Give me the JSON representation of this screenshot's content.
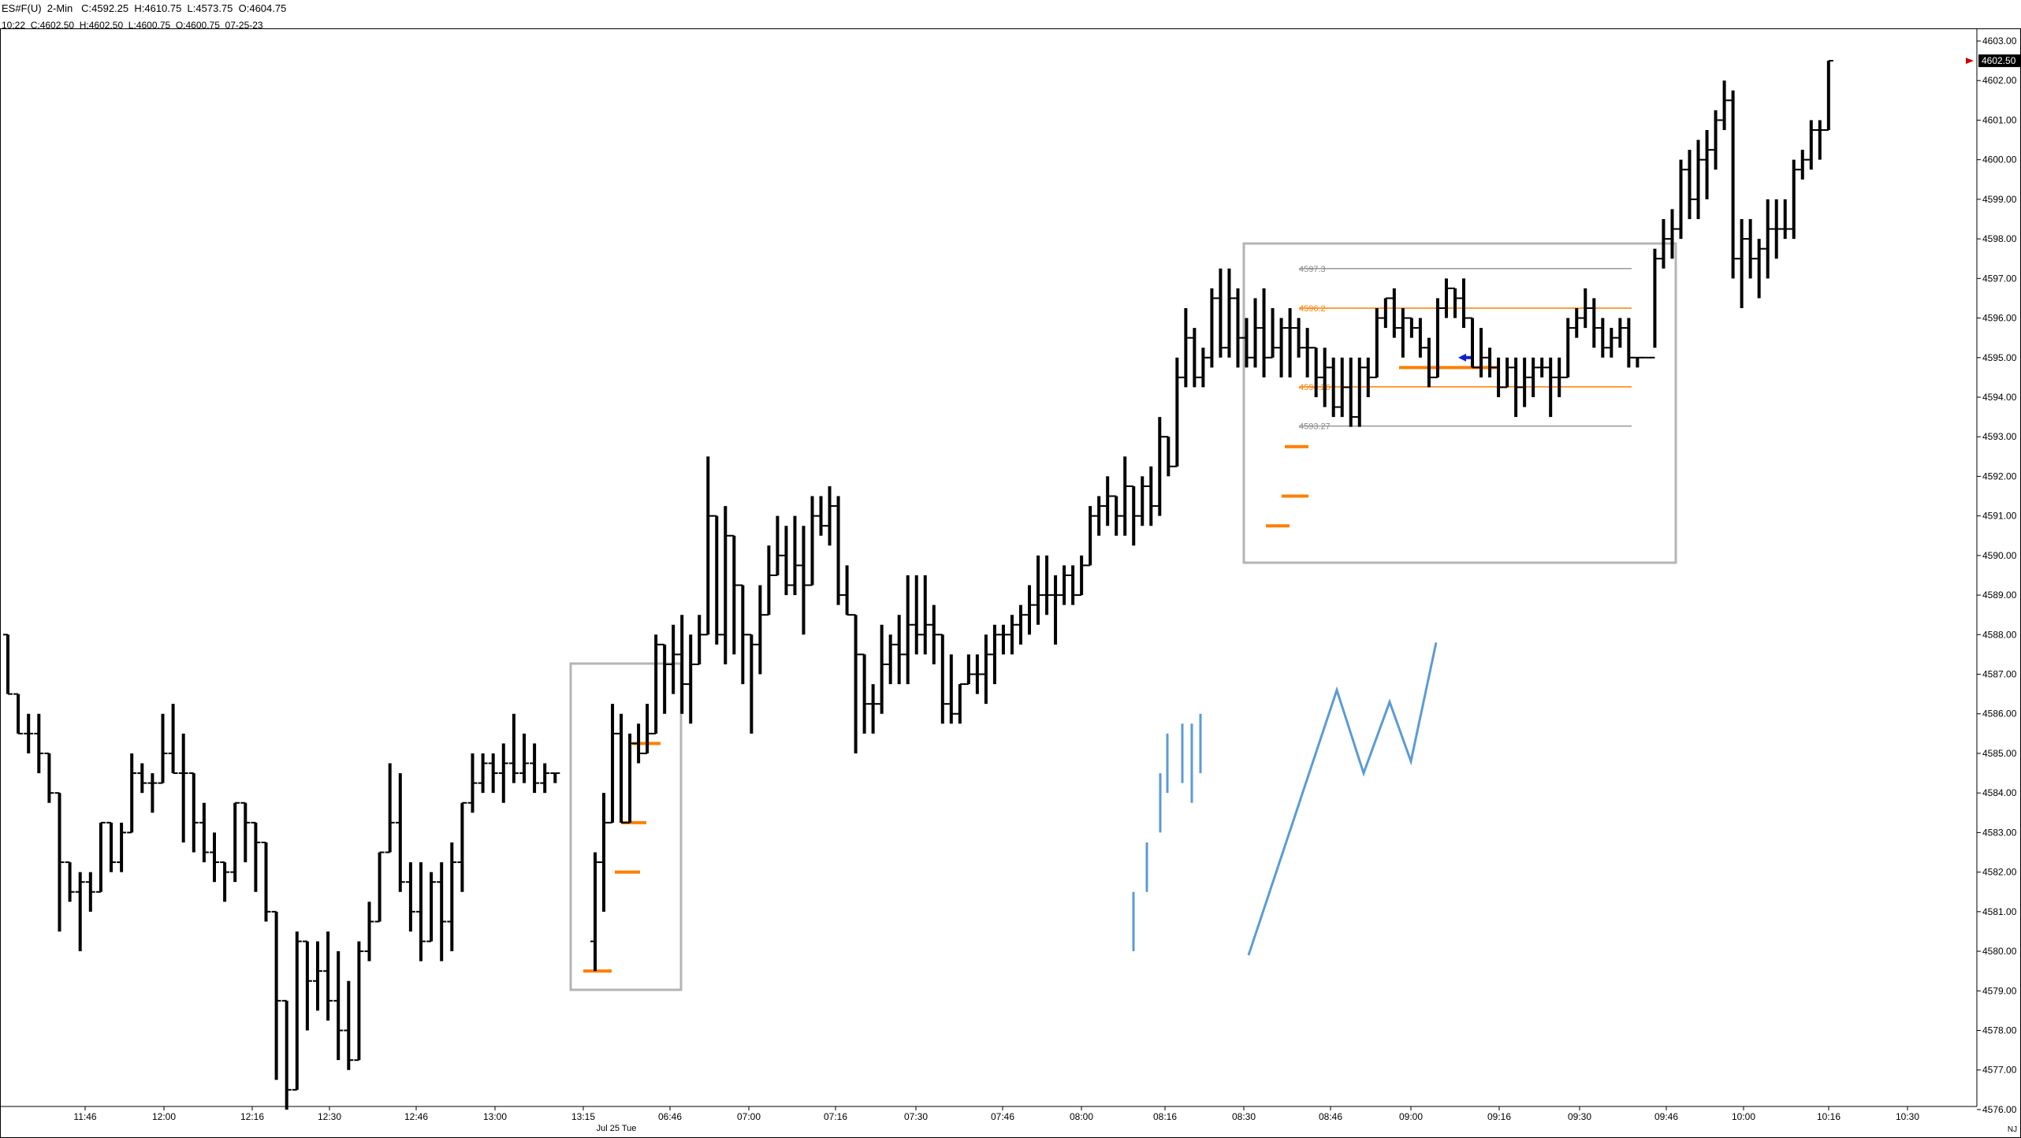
{
  "header": {
    "symbol_line": "ES#F(U)  2-Min   C:4592.25  H:4610.75  L:4573.75  O:4604.75",
    "bar_line": "10:22  C:4602.50  H:4602.50  L:4600.75  O:4600.75  07-25-23"
  },
  "colors": {
    "bar": "#000000",
    "level_orange": "#ff7f00",
    "box_gray": "#b4b4b4",
    "projection_blue": "#5b9bd5",
    "marker_blue": "#1020d0",
    "price_arrow": "#cc0000",
    "axis": "#000000"
  },
  "price_axis": {
    "labels": [
      "4603.00",
      "4602.00",
      "4601.00",
      "4600.00",
      "4599.00",
      "4598.00",
      "4597.00",
      "4596.00",
      "4595.00",
      "4594.00",
      "4593.00",
      "4592.00",
      "4591.00",
      "4590.00",
      "4589.00",
      "4588.00",
      "4587.00",
      "4586.00",
      "4585.00",
      "4584.00",
      "4583.00",
      "4582.00",
      "4581.00",
      "4580.00",
      "4579.00",
      "4578.00",
      "4577.00",
      "4576.00"
    ],
    "last_price": "4602.50"
  },
  "time_axis": {
    "labels": [
      "11:46",
      "12:00",
      "12:16",
      "12:30",
      "12:46",
      "13:00",
      "13:15",
      "06:46",
      "07:00",
      "07:16",
      "07:30",
      "07:46",
      "08:00",
      "08:16",
      "08:30",
      "08:46",
      "09:00",
      "09:16",
      "09:30",
      "09:46",
      "10:00",
      "10:16",
      "10:30"
    ],
    "date_label": "Jul 25 Tue",
    "corner_label": "NJ"
  },
  "range_box_labels": [
    "4597.3",
    "4596.2",
    "4594.26",
    "4593.27"
  ],
  "chart_data": {
    "type": "bar",
    "description_series": "OHLC 2-minute price bars",
    "ylim": [
      4576.0,
      4603.0
    ],
    "bars": [
      [
        4588.0,
        4588.0,
        4586.5,
        4586.5
      ],
      [
        4586.5,
        4586.5,
        4585.5,
        4585.5
      ],
      [
        4585.5,
        4586.0,
        4585.0,
        4585.5
      ],
      [
        4585.5,
        4586.0,
        4584.5,
        4585.0
      ],
      [
        4585.0,
        4585.0,
        4583.75,
        4584.0
      ],
      [
        4584.0,
        4584.0,
        4580.5,
        4582.25
      ],
      [
        4582.25,
        4582.25,
        4581.25,
        4581.5
      ],
      [
        4581.5,
        4582.0,
        4580.0,
        4581.75
      ],
      [
        4581.75,
        4582.0,
        4581.0,
        4581.5
      ],
      [
        4581.5,
        4583.25,
        4581.5,
        4583.25
      ],
      [
        4583.25,
        4583.25,
        4582.0,
        4582.25
      ],
      [
        4582.25,
        4583.25,
        4582.0,
        4583.0
      ],
      [
        4583.0,
        4585.0,
        4583.0,
        4584.5
      ],
      [
        4584.5,
        4584.75,
        4584.0,
        4584.25
      ],
      [
        4584.25,
        4584.5,
        4583.5,
        4584.25
      ],
      [
        4584.25,
        4586.0,
        4584.25,
        4585.0
      ],
      [
        4585.0,
        4586.25,
        4584.5,
        4584.5
      ],
      [
        4584.5,
        4585.5,
        4582.75,
        4584.5
      ],
      [
        4584.5,
        4584.5,
        4582.5,
        4583.25
      ],
      [
        4583.25,
        4583.75,
        4582.25,
        4582.5
      ],
      [
        4582.5,
        4583.0,
        4581.75,
        4582.25
      ],
      [
        4582.25,
        4582.25,
        4581.25,
        4582.0
      ],
      [
        4582.0,
        4583.75,
        4581.75,
        4583.75
      ],
      [
        4583.75,
        4583.75,
        4582.25,
        4583.25
      ],
      [
        4583.25,
        4583.25,
        4581.5,
        4582.75
      ],
      [
        4582.75,
        4582.75,
        4580.75,
        4581.0
      ],
      [
        4581.0,
        4581.0,
        4576.75,
        4578.75
      ],
      [
        4578.75,
        4578.75,
        4576.0,
        4576.5
      ],
      [
        4576.5,
        4580.5,
        4576.5,
        4580.25
      ],
      [
        4580.25,
        4580.25,
        4578.0,
        4579.25
      ],
      [
        4579.25,
        4580.25,
        4578.5,
        4579.5
      ],
      [
        4579.5,
        4580.5,
        4578.25,
        4578.75
      ],
      [
        4578.75,
        4580.0,
        4577.25,
        4578.0
      ],
      [
        4578.0,
        4579.25,
        4577.0,
        4577.25
      ],
      [
        4577.25,
        4580.25,
        4577.25,
        4580.0
      ],
      [
        4580.0,
        4581.25,
        4579.75,
        4580.75
      ],
      [
        4580.75,
        4582.5,
        4580.75,
        4582.5
      ],
      [
        4582.5,
        4584.75,
        4582.5,
        4583.25
      ],
      [
        4583.25,
        4584.5,
        4581.5,
        4581.75
      ],
      [
        4581.75,
        4582.25,
        4580.5,
        4581.0
      ],
      [
        4581.0,
        4582.25,
        4579.75,
        4580.25
      ],
      [
        4580.25,
        4582.0,
        4580.25,
        4581.75
      ],
      [
        4581.75,
        4582.25,
        4579.75,
        4580.75
      ],
      [
        4580.75,
        4582.75,
        4580.0,
        4582.25
      ],
      [
        4582.25,
        4583.75,
        4581.5,
        4583.75
      ],
      [
        4583.75,
        4585.0,
        4583.5,
        4584.25
      ],
      [
        4584.25,
        4585.0,
        4584.0,
        4584.75
      ],
      [
        4584.75,
        4585.0,
        4584.0,
        4584.5
      ],
      [
        4584.5,
        4585.25,
        4583.75,
        4584.75
      ],
      [
        4584.75,
        4586.0,
        4584.25,
        4584.5
      ],
      [
        4584.5,
        4585.5,
        4584.25,
        4584.75
      ],
      [
        4584.75,
        4585.25,
        4584.0,
        4584.25
      ],
      [
        4584.25,
        4584.75,
        4584.0,
        4584.5
      ],
      [
        4584.5,
        4584.5,
        4584.25,
        4584.5
      ],
      [
        4580.25,
        4582.5,
        4579.5,
        4582.25
      ],
      [
        4582.25,
        4584.0,
        4581.0,
        4583.25
      ],
      [
        4583.25,
        4586.25,
        4583.25,
        4585.5
      ],
      [
        4585.5,
        4586.0,
        4583.25,
        4583.25
      ],
      [
        4583.25,
        4585.5,
        4583.25,
        4585.25
      ],
      [
        4585.25,
        4585.75,
        4584.75,
        4585.0
      ],
      [
        4585.0,
        4586.25,
        4585.0,
        4585.5
      ],
      [
        4585.5,
        4588.0,
        4585.5,
        4587.75
      ],
      [
        4587.75,
        4587.75,
        4586.0,
        4587.25
      ],
      [
        4587.25,
        4588.25,
        4586.5,
        4587.5
      ],
      [
        4587.5,
        4588.5,
        4586.0,
        4586.75
      ],
      [
        4586.75,
        4588.0,
        4585.75,
        4587.25
      ],
      [
        4587.25,
        4588.5,
        4587.25,
        4588.0
      ],
      [
        4588.0,
        4592.5,
        4588.0,
        4591.0
      ],
      [
        4591.0,
        4591.0,
        4587.75,
        4588.0
      ],
      [
        4588.0,
        4591.25,
        4587.25,
        4590.5
      ],
      [
        4590.5,
        4590.5,
        4587.5,
        4589.25
      ],
      [
        4589.25,
        4589.25,
        4586.75,
        4588.0
      ],
      [
        4588.0,
        4588.0,
        4585.5,
        4587.75
      ],
      [
        4587.75,
        4589.25,
        4587.0,
        4588.5
      ],
      [
        4588.5,
        4590.25,
        4588.5,
        4589.5
      ],
      [
        4589.5,
        4591.0,
        4589.5,
        4590.0
      ],
      [
        4590.0,
        4590.75,
        4589.0,
        4589.25
      ],
      [
        4589.25,
        4591.0,
        4589.0,
        4589.75
      ],
      [
        4589.75,
        4590.75,
        4588.0,
        4589.25
      ],
      [
        4589.25,
        4591.5,
        4589.25,
        4591.0
      ],
      [
        4591.0,
        4591.5,
        4590.5,
        4590.75
      ],
      [
        4590.75,
        4591.75,
        4590.25,
        4591.25
      ],
      [
        4591.25,
        4591.5,
        4588.75,
        4589.0
      ],
      [
        4589.0,
        4589.75,
        4588.5,
        4588.5
      ],
      [
        4588.5,
        4588.5,
        4585.0,
        4587.5
      ],
      [
        4587.5,
        4587.5,
        4585.5,
        4586.25
      ],
      [
        4586.25,
        4586.75,
        4585.5,
        4586.25
      ],
      [
        4586.25,
        4588.25,
        4586.0,
        4587.25
      ],
      [
        4587.25,
        4588.0,
        4586.75,
        4587.75
      ],
      [
        4587.75,
        4588.5,
        4586.75,
        4587.5
      ],
      [
        4587.5,
        4589.5,
        4586.75,
        4588.25
      ],
      [
        4588.25,
        4589.5,
        4587.5,
        4588.0
      ],
      [
        4588.0,
        4589.5,
        4587.5,
        4588.25
      ],
      [
        4588.25,
        4588.75,
        4587.25,
        4588.0
      ],
      [
        4588.0,
        4588.0,
        4585.75,
        4586.25
      ],
      [
        4586.25,
        4587.5,
        4585.75,
        4586.0
      ],
      [
        4586.0,
        4586.75,
        4585.75,
        4586.75
      ],
      [
        4586.75,
        4587.5,
        4586.75,
        4587.0
      ],
      [
        4587.0,
        4587.5,
        4586.5,
        4587.0
      ],
      [
        4587.0,
        4588.0,
        4586.25,
        4587.5
      ],
      [
        4587.5,
        4588.25,
        4586.75,
        4588.0
      ],
      [
        4588.0,
        4588.25,
        4587.5,
        4588.0
      ],
      [
        4588.0,
        4588.5,
        4587.5,
        4588.25
      ],
      [
        4588.25,
        4588.75,
        4587.75,
        4588.5
      ],
      [
        4588.5,
        4589.25,
        4588.0,
        4588.75
      ],
      [
        4588.75,
        4590.0,
        4588.25,
        4589.0
      ],
      [
        4589.0,
        4590.0,
        4588.5,
        4589.0
      ],
      [
        4589.0,
        4589.5,
        4587.75,
        4589.0
      ],
      [
        4589.0,
        4589.75,
        4588.75,
        4589.5
      ],
      [
        4589.5,
        4589.75,
        4588.75,
        4589.0
      ],
      [
        4589.0,
        4590.0,
        4589.0,
        4589.75
      ],
      [
        4589.75,
        4591.25,
        4589.75,
        4591.0
      ],
      [
        4591.0,
        4591.5,
        4590.5,
        4591.25
      ],
      [
        4591.25,
        4592.0,
        4590.75,
        4591.5
      ],
      [
        4591.5,
        4591.5,
        4590.5,
        4591.0
      ],
      [
        4591.0,
        4592.5,
        4590.5,
        4591.75
      ],
      [
        4591.75,
        4591.75,
        4590.25,
        4591.0
      ],
      [
        4591.0,
        4592.0,
        4590.75,
        4591.75
      ],
      [
        4591.75,
        4592.25,
        4590.75,
        4591.25
      ],
      [
        4591.25,
        4593.5,
        4591.0,
        4593.0
      ],
      [
        4593.0,
        4593.0,
        4592.0,
        4592.25
      ],
      [
        4592.25,
        4595.0,
        4592.25,
        4594.5
      ],
      [
        4594.5,
        4596.25,
        4594.25,
        4595.5
      ],
      [
        4595.5,
        4595.75,
        4594.25,
        4594.5
      ],
      [
        4594.5,
        4595.25,
        4594.25,
        4595.0
      ],
      [
        4595.0,
        4596.75,
        4594.75,
        4596.5
      ],
      [
        4596.5,
        4597.25,
        4595.0,
        4595.25
      ],
      [
        4595.25,
        4597.25,
        4595.0,
        4596.5
      ],
      [
        4596.5,
        4596.75,
        4594.75,
        4595.5
      ],
      [
        4595.5,
        4596.0,
        4594.75,
        4595.0
      ],
      [
        4595.0,
        4596.5,
        4594.75,
        4595.75
      ],
      [
        4595.75,
        4596.75,
        4594.5,
        4595.0
      ],
      [
        4595.0,
        4596.25,
        4595.0,
        4595.25
      ],
      [
        4595.25,
        4596.0,
        4594.5,
        4595.75
      ],
      [
        4595.75,
        4596.25,
        4594.5,
        4595.75
      ],
      [
        4595.75,
        4596.0,
        4595.0,
        4595.25
      ],
      [
        4595.25,
        4595.75,
        4594.5,
        4595.25
      ],
      [
        4595.25,
        4595.25,
        4594.0,
        4594.5
      ],
      [
        4594.5,
        4595.25,
        4593.75,
        4594.75
      ],
      [
        4594.75,
        4595.0,
        4593.5,
        4593.75
      ],
      [
        4593.75,
        4595.0,
        4593.5,
        4594.25
      ],
      [
        4594.25,
        4595.0,
        4593.25,
        4593.5
      ],
      [
        4593.5,
        4595.0,
        4593.25,
        4594.75
      ],
      [
        4594.75,
        4595.0,
        4594.0,
        4594.5
      ],
      [
        4594.5,
        4596.25,
        4594.5,
        4596.0
      ],
      [
        4596.0,
        4596.5,
        4595.75,
        4596.5
      ],
      [
        4596.5,
        4596.75,
        4595.5,
        4595.75
      ],
      [
        4595.75,
        4596.25,
        4595.0,
        4596.0
      ],
      [
        4596.0,
        4596.0,
        4595.5,
        4595.75
      ],
      [
        4595.75,
        4596.0,
        4595.0,
        4595.25
      ],
      [
        4595.25,
        4595.5,
        4594.25,
        4594.5
      ],
      [
        4594.5,
        4596.5,
        4594.5,
        4596.25
      ],
      [
        4596.25,
        4597.0,
        4596.0,
        4596.75
      ],
      [
        4596.75,
        4596.75,
        4596.0,
        4596.5
      ],
      [
        4596.5,
        4597.0,
        4595.75,
        4596.0
      ],
      [
        4596.0,
        4596.0,
        4594.75,
        4594.75
      ],
      [
        4594.75,
        4595.75,
        4594.5,
        4595.0
      ],
      [
        4595.0,
        4595.25,
        4594.5,
        4594.75
      ],
      [
        4594.75,
        4595.0,
        4594.0,
        4594.25
      ],
      [
        4594.25,
        4595.0,
        4594.25,
        4594.75
      ],
      [
        4594.75,
        4595.0,
        4593.5,
        4594.25
      ],
      [
        4594.25,
        4595.0,
        4593.75,
        4594.5
      ],
      [
        4594.5,
        4595.0,
        4594.0,
        4594.75
      ],
      [
        4594.75,
        4595.0,
        4594.5,
        4594.75
      ],
      [
        4594.75,
        4595.0,
        4593.5,
        4594.5
      ],
      [
        4594.5,
        4595.0,
        4594.0,
        4594.5
      ],
      [
        4594.5,
        4596.0,
        4594.5,
        4595.75
      ],
      [
        4595.75,
        4596.25,
        4595.5,
        4596.0
      ],
      [
        4596.0,
        4596.75,
        4595.75,
        4596.25
      ],
      [
        4596.25,
        4596.5,
        4595.25,
        4595.75
      ],
      [
        4595.75,
        4596.0,
        4595.0,
        4595.25
      ],
      [
        4595.25,
        4595.75,
        4595.0,
        4595.5
      ],
      [
        4595.5,
        4596.0,
        4595.25,
        4595.75
      ],
      [
        4595.75,
        4596.0,
        4594.75,
        4595.0
      ],
      [
        4595.0,
        4595.0,
        4594.75,
        4595.0
      ],
      [
        4595.0,
        4595.0,
        4595.0,
        4595.0
      ],
      [
        4595.0,
        4597.75,
        4595.25,
        4597.5
      ],
      [
        4597.5,
        4598.5,
        4597.25,
        4598.0
      ],
      [
        4598.0,
        4598.75,
        4597.5,
        4598.25
      ],
      [
        4598.25,
        4600.0,
        4598.0,
        4599.75
      ],
      [
        4599.75,
        4600.25,
        4598.5,
        4599.0
      ],
      [
        4599.0,
        4600.5,
        4598.5,
        4600.0
      ],
      [
        4600.0,
        4600.75,
        4599.0,
        4600.25
      ],
      [
        4600.25,
        4601.25,
        4599.75,
        4601.0
      ],
      [
        4601.0,
        4602.0,
        4600.75,
        4601.5
      ],
      [
        4601.5,
        4601.75,
        4597.0,
        4597.5
      ],
      [
        4597.5,
        4598.5,
        4596.25,
        4598.0
      ],
      [
        4598.0,
        4598.5,
        4597.0,
        4597.5
      ],
      [
        4597.5,
        4598.0,
        4596.5,
        4597.75
      ],
      [
        4597.75,
        4599.0,
        4597.0,
        4598.25
      ],
      [
        4598.25,
        4599.0,
        4597.5,
        4598.25
      ],
      [
        4598.25,
        4599.0,
        4598.0,
        4598.25
      ],
      [
        4598.25,
        4600.0,
        4598.0,
        4599.75
      ],
      [
        4599.75,
        4600.25,
        4599.5,
        4600.0
      ],
      [
        4600.0,
        4601.0,
        4599.75,
        4600.75
      ],
      [
        4600.75,
        4601.0,
        4600.0,
        4600.75
      ],
      [
        4600.75,
        4602.5,
        4600.75,
        4602.5
      ]
    ]
  },
  "levels": {
    "left_box_orange": [
      4579.5,
      4582.0,
      4583.25,
      4585.25
    ],
    "right_box_orange_dashes": [
      4590.75,
      4591.5,
      4592.75
    ],
    "right_box_orange_lines": [
      4596.25,
      4594.26
    ],
    "right_box_gray_lines": [
      4597.25,
      4593.27
    ],
    "right_box_orange_mid": 4594.75
  },
  "projection": {
    "ticks": [
      [
        4580.0,
        4581.5
      ],
      [
        4581.5,
        4582.75
      ],
      [
        4583.0,
        4584.5
      ],
      [
        4584.0,
        4585.5
      ],
      [
        4584.25,
        4585.75
      ],
      [
        4583.75,
        4585.75
      ],
      [
        4584.5,
        4586.0
      ]
    ],
    "zigzag": [
      4579.9,
      4586.6,
      4584.5,
      4586.3,
      4584.8,
      4587.8
    ]
  }
}
